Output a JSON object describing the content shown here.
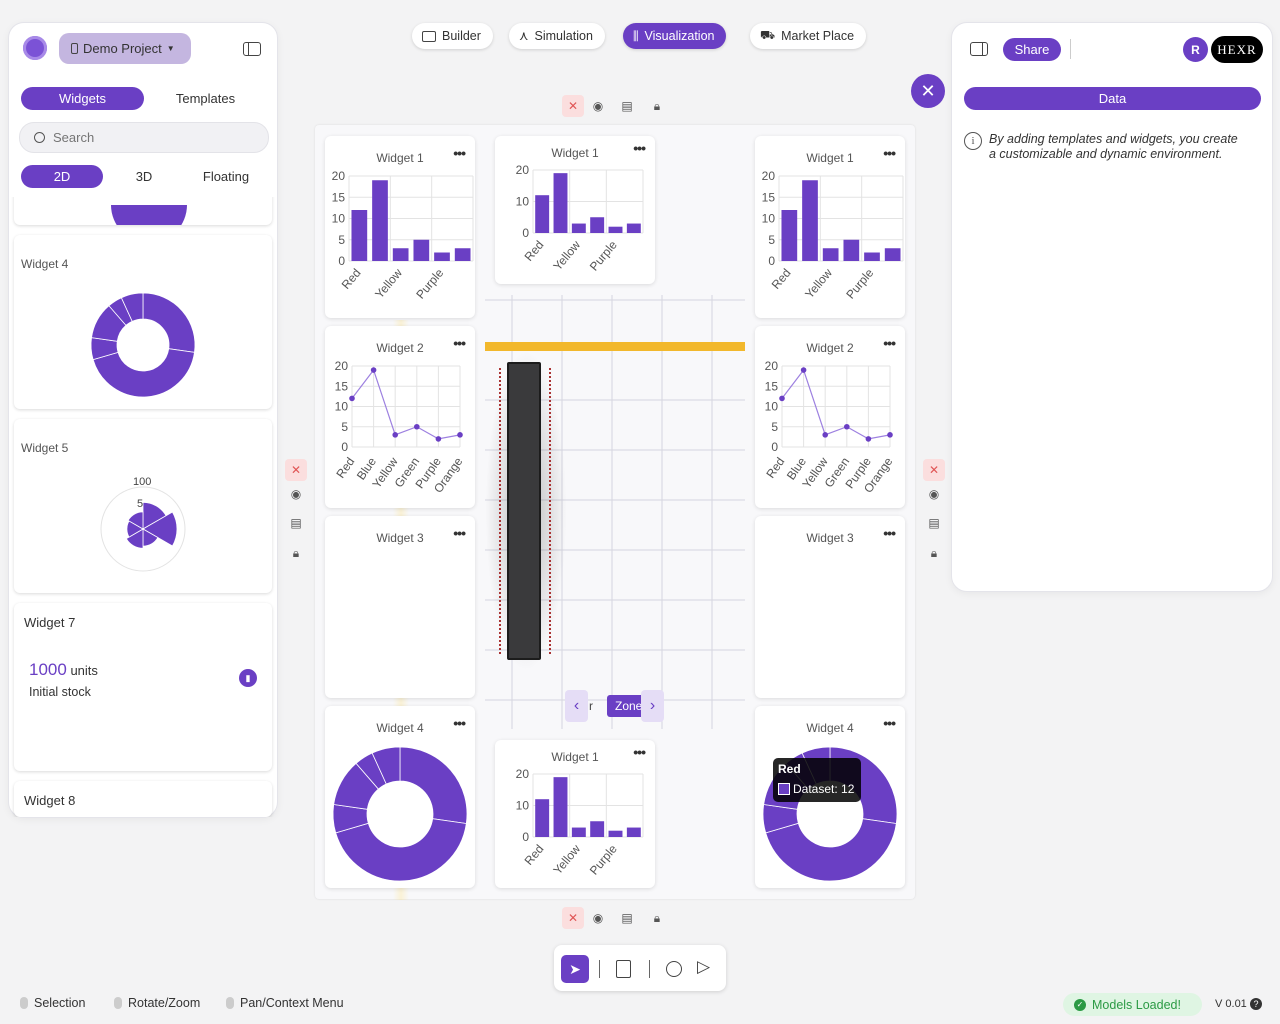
{
  "project": {
    "name": "Demo Project"
  },
  "left_panel": {
    "tabs": [
      "Widgets",
      "Templates"
    ],
    "search_placeholder": "Search",
    "modes": [
      "2D",
      "3D",
      "Floating"
    ],
    "cards": {
      "w4": "Widget 4",
      "w5": "Widget 5",
      "w5_scale_max": "100",
      "w5_scale_mid": "5",
      "w7": "Widget 7",
      "w7_value": "1000",
      "w7_unit": "units",
      "w7_caption": "Initial stock",
      "w8": "Widget 8"
    }
  },
  "top_nav": [
    "Builder",
    "Simulation",
    "Visualization",
    "Market Place"
  ],
  "right_panel": {
    "share": "Share",
    "avatar_initial": "R",
    "logo_text": "HEXR",
    "data_tab": "Data",
    "info": "By adding templates and widgets, you create a customizable and dynamic environment."
  },
  "widgets": {
    "w1": "Widget 1",
    "w2": "Widget 2",
    "w3": "Widget 3",
    "w4": "Widget 4"
  },
  "zone": {
    "label": "Zone",
    "partial": "r"
  },
  "tooltip": {
    "title": "Red",
    "text": "Dataset: 12"
  },
  "status_bar": {
    "selection": "Selection",
    "rotate": "Rotate/Zoom",
    "pan": "Pan/Context Menu",
    "models": "Models Loaded!",
    "version": "V 0.01"
  },
  "colors": {
    "accent": "#6a3fc4",
    "success_bg": "#dff5e3",
    "success": "#2b9a44"
  },
  "chart_data": [
    {
      "id": "widget-1",
      "type": "bar",
      "title": "Widget 1",
      "categories": [
        "Red",
        "Blue",
        "Yellow",
        "Green",
        "Purple",
        "Orange"
      ],
      "values": [
        12,
        19,
        3,
        5,
        2,
        3
      ],
      "ylim": [
        0,
        20
      ],
      "yticks": [
        0,
        5,
        10,
        15,
        20
      ],
      "shown_xlabels": [
        "Red",
        "Yellow",
        "Purple"
      ]
    },
    {
      "id": "widget-2",
      "type": "line",
      "title": "Widget 2",
      "categories": [
        "Red",
        "Blue",
        "Yellow",
        "Green",
        "Purple",
        "Orange"
      ],
      "values": [
        12,
        19,
        3,
        5,
        2,
        3
      ],
      "ylim": [
        0,
        20
      ],
      "yticks": [
        0,
        5,
        10,
        15,
        20
      ]
    },
    {
      "id": "widget-4",
      "type": "pie",
      "title": "Widget 4",
      "style": "doughnut",
      "categories": [
        "Red",
        "Blue",
        "Yellow",
        "Green",
        "Purple",
        "Orange"
      ],
      "values": [
        12,
        19,
        3,
        5,
        2,
        3
      ]
    },
    {
      "id": "widget-5",
      "type": "pie",
      "title": "Widget 5",
      "style": "polar-area",
      "categories": [
        "Red",
        "Blue",
        "Yellow",
        "Green",
        "Purple",
        "Orange"
      ],
      "values": [
        12,
        19,
        3,
        5,
        2,
        3
      ]
    }
  ]
}
